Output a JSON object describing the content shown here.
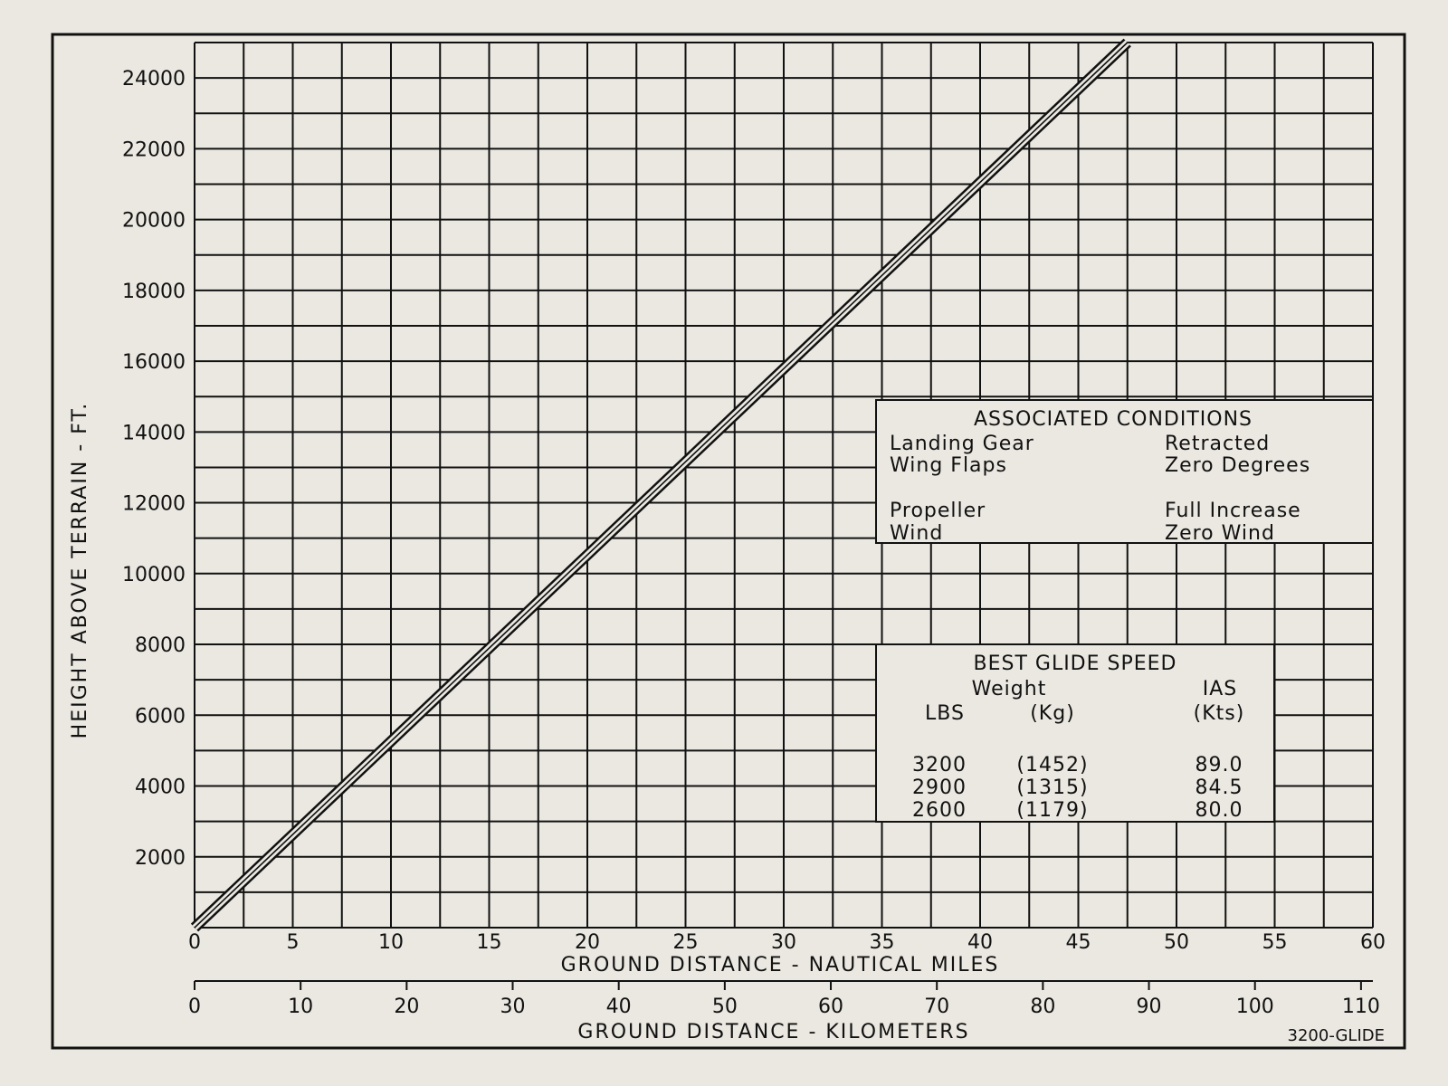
{
  "chart_data": {
    "type": "line",
    "title": "",
    "ylabel": "HEIGHT ABOVE TERRAIN - FT.",
    "xlabel": "GROUND DISTANCE - NAUTICAL MILES",
    "x2label": "GROUND DISTANCE - KILOMETERS",
    "figure_id": "3200-GLIDE",
    "xlim": [
      0,
      60
    ],
    "ylim": [
      0,
      25000
    ],
    "x_ticks": [
      "0",
      "5",
      "10",
      "15",
      "20",
      "25",
      "30",
      "35",
      "40",
      "45",
      "50",
      "55",
      "60"
    ],
    "y_ticks": [
      "2000",
      "4000",
      "6000",
      "8000",
      "10000",
      "12000",
      "14000",
      "16000",
      "18000",
      "20000",
      "22000",
      "24000"
    ],
    "km_ticks": [
      "0",
      "10",
      "20",
      "30",
      "40",
      "50",
      "60",
      "70",
      "80",
      "90",
      "100",
      "110"
    ],
    "grid": true,
    "series": [
      {
        "x": [
          0,
          47.5
        ],
        "y": [
          0,
          25000
        ]
      }
    ],
    "associated_conditions": {
      "title": "ASSOCIATED CONDITIONS",
      "rows": [
        {
          "label": "Landing Gear",
          "value": "Retracted"
        },
        {
          "label": "Wing Flaps",
          "value": "Zero Degrees"
        },
        {
          "label": "Propeller",
          "value": "Full Increase"
        },
        {
          "label": "Wind",
          "value": "Zero Wind"
        }
      ]
    },
    "best_glide_speed": {
      "title": "BEST GLIDE SPEED",
      "header1": {
        "weight": "Weight",
        "ias": "IAS"
      },
      "header2": {
        "lbs": "LBS",
        "kg": "(Kg)",
        "kts": "(Kts)"
      },
      "rows": [
        {
          "lbs": "3200",
          "kg": "(1452)",
          "ias": "89.0"
        },
        {
          "lbs": "2900",
          "kg": "(1315)",
          "ias": "84.5"
        },
        {
          "lbs": "2600",
          "kg": "(1179)",
          "ias": "80.0"
        }
      ]
    },
    "colors": {
      "ink": "#111111",
      "paper": "#ebe8e1"
    }
  }
}
